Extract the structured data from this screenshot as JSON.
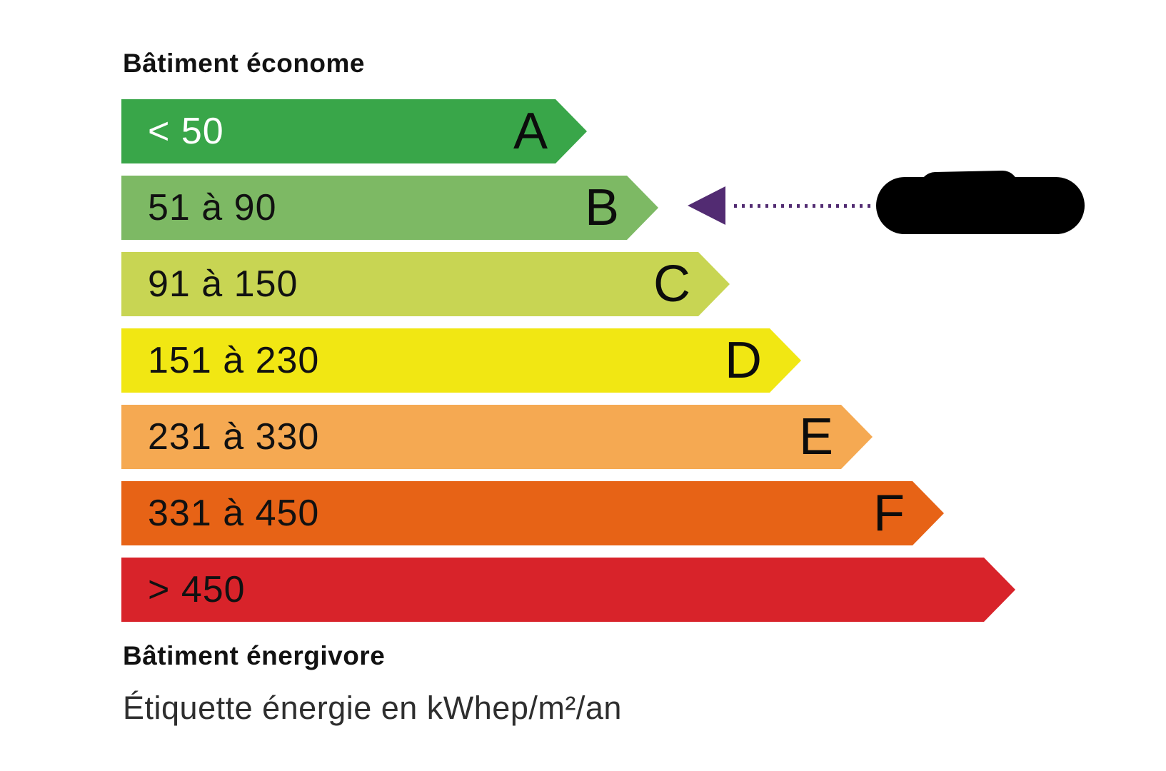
{
  "title_top": "Bâtiment économe",
  "title_bottom": "Bâtiment énergivore",
  "caption": "Étiquette énergie en kWhep/m²/an",
  "indicator": {
    "points_to": "B",
    "arrow_color": "#522B72",
    "value_redacted": true
  },
  "chart_data": {
    "type": "bar",
    "orientation": "horizontal",
    "title": "Étiquette énergie",
    "unit": "kWhep/m²/an",
    "top_label": "Bâtiment économe",
    "bottom_label": "Bâtiment énergivore",
    "highlighted_class": "B",
    "classes": [
      {
        "letter": "A",
        "range": "< 50",
        "min": null,
        "max": 50,
        "color": "#39A649",
        "text_color": "#FFFFFF"
      },
      {
        "letter": "B",
        "range": "51 à 90",
        "min": 51,
        "max": 90,
        "color": "#7DB964",
        "text_color": "#111111"
      },
      {
        "letter": "C",
        "range": "91 à 150",
        "min": 91,
        "max": 150,
        "color": "#C8D553",
        "text_color": "#111111"
      },
      {
        "letter": "D",
        "range": "151 à 230",
        "min": 151,
        "max": 230,
        "color": "#F1E713",
        "text_color": "#111111"
      },
      {
        "letter": "E",
        "range": "231 à 330",
        "min": 231,
        "max": 330,
        "color": "#F5A952",
        "text_color": "#111111"
      },
      {
        "letter": "F",
        "range": "331 à 450",
        "min": 331,
        "max": 450,
        "color": "#E76316",
        "text_color": "#111111"
      },
      {
        "letter": "",
        "range": "> 450",
        "min": 450,
        "max": null,
        "color": "#D8232A",
        "text_color": "#111111"
      }
    ]
  }
}
